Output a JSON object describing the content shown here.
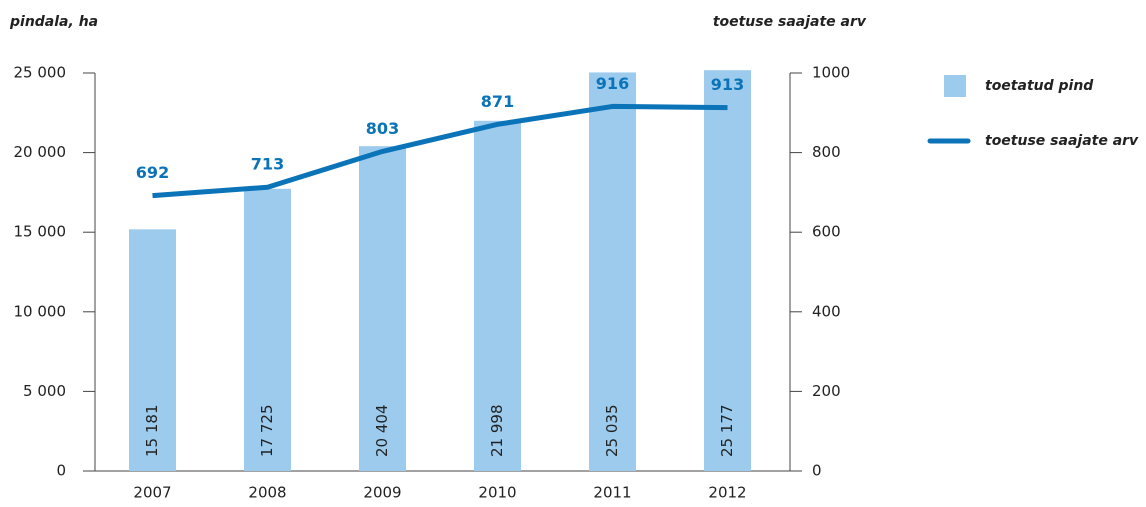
{
  "chart_data": {
    "type": "bar",
    "ylabel": "pindala, ha",
    "y2label": "toetuse saajate arv",
    "categories": [
      "2007",
      "2008",
      "2009",
      "2010",
      "2011",
      "2012"
    ],
    "series": [
      {
        "name": "toetatud pind",
        "type": "bar",
        "color": "#9dcbed",
        "values": [
          15181,
          17725,
          20404,
          21998,
          25035,
          25177
        ],
        "value_labels": [
          "15 181",
          "17 725",
          "20 404",
          "21 998",
          "25 035",
          "25 177"
        ]
      },
      {
        "name": "toetuse saajate arv",
        "type": "line",
        "axis": "y2",
        "color": "#0b73b8",
        "values": [
          692,
          713,
          803,
          871,
          916,
          913
        ]
      }
    ],
    "ylim": [
      0,
      25000
    ],
    "yticks": [
      0,
      {
        "value": 5000,
        "label": "5 000"
      },
      {
        "value": 10000,
        "label": "10 000"
      },
      {
        "value": 15000,
        "label": "15 000"
      },
      {
        "value": 20000,
        "label": "20 000"
      },
      {
        "value": 25000,
        "label": "25 000"
      }
    ],
    "y2lim": [
      0,
      1000
    ],
    "y2ticks": [
      0,
      200,
      400,
      600,
      800,
      1000
    ]
  }
}
